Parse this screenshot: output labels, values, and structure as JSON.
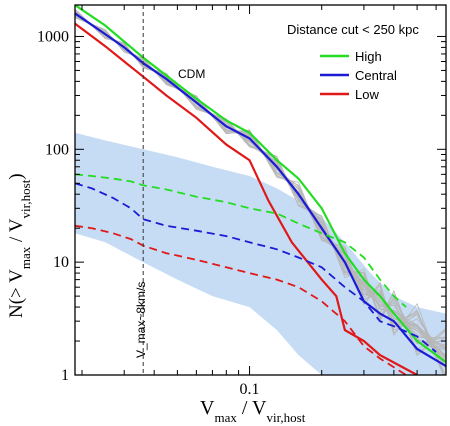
{
  "chart_data": {
    "type": "line",
    "title": "",
    "xlabel": "V_max / V_vir,host",
    "ylabel": "N(> V_max / V_vir,host)",
    "x_scale": "log",
    "y_scale": "log",
    "xlim": [
      0.0187,
      0.66
    ],
    "ylim": [
      1,
      1900
    ],
    "x_ticks": [
      {
        "value": 0.1,
        "label": "0.1"
      }
    ],
    "y_ticks": [
      {
        "value": 1,
        "label": "1"
      },
      {
        "value": 10,
        "label": "10"
      },
      {
        "value": 100,
        "label": "100"
      },
      {
        "value": 1000,
        "label": "1000"
      }
    ],
    "grid": false,
    "legend": {
      "title": "Distance cut < 250 kpc",
      "position": "top-right",
      "entries": [
        {
          "label": "High",
          "color": "#22dd22"
        },
        {
          "label": "Central",
          "color": "#1b1bd6"
        },
        {
          "label": "Low",
          "color": "#e01818"
        }
      ]
    },
    "annotations": {
      "cdm_label": "CDM",
      "vline_label": "V_max~8km/s",
      "vline_x": 0.036
    },
    "series": [
      {
        "name": "High",
        "style": "solid",
        "color": "#22dd22",
        "x": [
          0.0187,
          0.025,
          0.03,
          0.036,
          0.045,
          0.06,
          0.08,
          0.1,
          0.13,
          0.16,
          0.2,
          0.25,
          0.3,
          0.35,
          0.4,
          0.5,
          0.66
        ],
        "y": [
          1900,
          1250,
          900,
          650,
          450,
          280,
          180,
          140,
          80,
          55,
          30,
          12,
          7,
          5,
          3.5,
          2.0,
          1.3
        ]
      },
      {
        "name": "Central",
        "style": "solid",
        "color": "#1b1bd6",
        "x": [
          0.0187,
          0.025,
          0.03,
          0.036,
          0.045,
          0.06,
          0.08,
          0.1,
          0.13,
          0.16,
          0.2,
          0.25,
          0.3,
          0.35,
          0.4,
          0.5,
          0.66
        ],
        "y": [
          1600,
          1050,
          800,
          580,
          420,
          260,
          160,
          125,
          70,
          40,
          20,
          10,
          4.5,
          3.5,
          3,
          1.7,
          1.2
        ]
      },
      {
        "name": "Low",
        "style": "solid",
        "color": "#e01818",
        "x": [
          0.0187,
          0.025,
          0.03,
          0.036,
          0.045,
          0.06,
          0.08,
          0.1,
          0.12,
          0.15,
          0.2,
          0.23,
          0.25,
          0.3,
          0.35,
          0.5
        ],
        "y": [
          1300,
          820,
          600,
          440,
          300,
          190,
          110,
          80,
          35,
          15,
          7,
          5,
          2.5,
          2,
          1.5,
          1.0
        ]
      },
      {
        "name": "High (dashed)",
        "style": "dashed",
        "color": "#22dd22",
        "x": [
          0.0187,
          0.022,
          0.027,
          0.032,
          0.036,
          0.045,
          0.06,
          0.08,
          0.1,
          0.13,
          0.16,
          0.2,
          0.25,
          0.3,
          0.35,
          0.4,
          0.45
        ],
        "y": [
          60,
          58,
          55,
          52,
          48,
          44,
          38,
          34,
          30,
          27,
          22,
          18,
          15,
          11,
          7,
          5,
          4
        ]
      },
      {
        "name": "Central (dashed)",
        "style": "dashed",
        "color": "#1b1bd6",
        "x": [
          0.0187,
          0.022,
          0.027,
          0.032,
          0.036,
          0.045,
          0.06,
          0.08,
          0.1,
          0.13,
          0.16,
          0.2,
          0.25,
          0.3,
          0.35,
          0.4,
          0.5,
          0.6
        ],
        "y": [
          50,
          45,
          37,
          30,
          24,
          21,
          19,
          17,
          15,
          13,
          11,
          9,
          6,
          4.5,
          3,
          2.7,
          2.2,
          1.6
        ]
      },
      {
        "name": "Low (dashed)",
        "style": "dashed",
        "color": "#e01818",
        "x": [
          0.0187,
          0.022,
          0.027,
          0.032,
          0.036,
          0.045,
          0.06,
          0.08,
          0.1,
          0.13,
          0.16,
          0.2,
          0.25,
          0.3,
          0.35,
          0.45
        ],
        "y": [
          21,
          20,
          18,
          16,
          14,
          12,
          10.5,
          9,
          8,
          7,
          6,
          4.5,
          3,
          1.8,
          1.4,
          1.0
        ]
      }
    ],
    "band_low": {
      "x": [
        0.0187,
        0.025,
        0.036,
        0.05,
        0.07,
        0.1,
        0.13,
        0.16,
        0.2,
        0.25,
        0.32,
        0.4,
        0.5,
        0.66
      ],
      "y": [
        18,
        15,
        10,
        7,
        5,
        4,
        2.5,
        1.5,
        1.0,
        1.0,
        1.0,
        1.0,
        1.0,
        1.0
      ]
    },
    "band_high": {
      "x": [
        0.0187,
        0.025,
        0.036,
        0.05,
        0.07,
        0.1,
        0.13,
        0.16,
        0.2,
        0.25,
        0.32,
        0.4,
        0.5,
        0.66
      ],
      "y": [
        140,
        120,
        100,
        85,
        70,
        58,
        45,
        35,
        25,
        15,
        8,
        5,
        4,
        3.5
      ]
    },
    "cdm_curves": {
      "color": "#b8b8b8",
      "count": 30,
      "base_x": [
        0.0187,
        0.025,
        0.03,
        0.036,
        0.045,
        0.06,
        0.08,
        0.1,
        0.13,
        0.16,
        0.2,
        0.25,
        0.3,
        0.35,
        0.4,
        0.5,
        0.66
      ],
      "base_y": [
        1600,
        1050,
        800,
        580,
        420,
        260,
        160,
        125,
        70,
        40,
        20,
        10,
        6,
        4.5,
        3.5,
        2.5,
        1.5
      ]
    }
  }
}
